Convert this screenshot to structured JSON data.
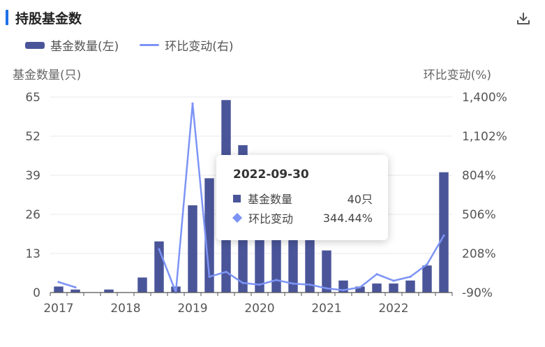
{
  "title": "持股基金数",
  "icons": {
    "download": "download-icon"
  },
  "legend": {
    "bar": "基金数量(左)",
    "line": "环比变动(右)"
  },
  "tooltip": {
    "date": "2022-09-30",
    "row1_label": "基金数量",
    "row1_value": "40只",
    "row2_label": "环比变动",
    "row2_value": "344.44%"
  },
  "colors": {
    "bar": "#4a5599",
    "line": "#7d94f5",
    "accent": "#1e6fe6"
  },
  "chart_data": {
    "type": "bar",
    "ylabel_left": "基金数量(只)",
    "ylabel_right": "环比变动(%)",
    "left_ticks": [
      "65",
      "52",
      "39",
      "26",
      "13",
      "0"
    ],
    "right_ticks": [
      "1,400%",
      "1,102%",
      "804%",
      "506%",
      "208%",
      "-90%"
    ],
    "ylim_left": [
      0,
      65
    ],
    "ylim_right": [
      -90,
      1400
    ],
    "x_ticks": [
      "2017",
      "2018",
      "2019",
      "2020",
      "2021",
      "2022"
    ],
    "categories": [
      "2016-12-31",
      "2017-03-31",
      "2017-06-30",
      "2017-09-30",
      "2017-12-31",
      "2018-03-31",
      "2018-06-30",
      "2018-09-30",
      "2018-12-31",
      "2019-03-31",
      "2019-06-30",
      "2019-09-30",
      "2019-12-31",
      "2020-03-31",
      "2020-06-30",
      "2020-09-30",
      "2020-12-31",
      "2021-03-31",
      "2021-06-30",
      "2021-09-30",
      "2021-12-31",
      "2022-03-31",
      "2022-06-30",
      "2022-09-30"
    ],
    "series": [
      {
        "name": "基金数量",
        "axis": "left",
        "type": "bar",
        "values": [
          2,
          1,
          0,
          1,
          0,
          5,
          17,
          2,
          29,
          38,
          64,
          49,
          24,
          20,
          24,
          24,
          14,
          4,
          2,
          3,
          3,
          4,
          9,
          40
        ]
      },
      {
        "name": "环比变动",
        "axis": "right",
        "type": "line",
        "values": [
          -10,
          -50,
          null,
          null,
          null,
          null,
          240,
          -88,
          1350,
          30,
          68,
          -17,
          -30,
          5,
          -22,
          -30,
          -58,
          -72,
          -50,
          50,
          0,
          30,
          125,
          344.44
        ]
      }
    ],
    "grid": true
  }
}
